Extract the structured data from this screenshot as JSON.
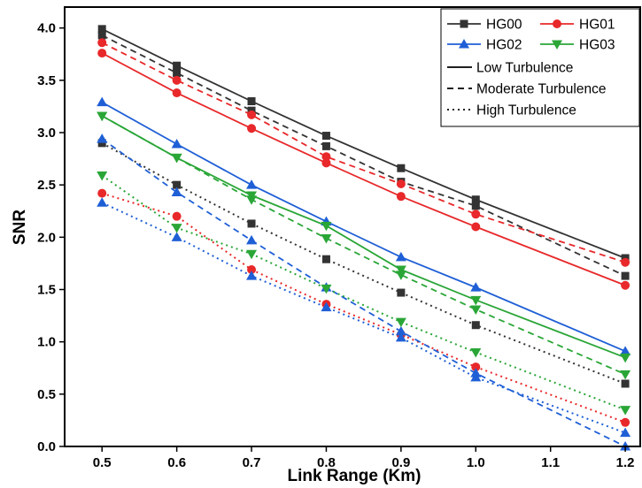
{
  "chart_data": {
    "type": "line",
    "title": "",
    "xlabel": "Link Range (Km)",
    "ylabel": "SNR",
    "xlim": [
      0.45,
      1.22
    ],
    "ylim": [
      0.0,
      4.2
    ],
    "xticks": [
      0.5,
      0.6,
      0.7,
      0.8,
      0.9,
      1.0,
      1.1,
      1.2
    ],
    "xtick_labels": [
      "0.5",
      "0.6",
      "0.7",
      "0.8",
      "0.9",
      "1.0",
      "1.1",
      "1.2"
    ],
    "yticks": [
      0.0,
      0.5,
      1.0,
      1.5,
      2.0,
      2.5,
      3.0,
      3.5,
      4.0
    ],
    "ytick_labels": [
      "0.0",
      "0.5",
      "1.0",
      "1.5",
      "2.0",
      "2.5",
      "3.0",
      "3.5",
      "4.0"
    ],
    "x": [
      0.5,
      0.6,
      0.7,
      0.8,
      0.9,
      1.0,
      1.2
    ],
    "legend_position": "top-right",
    "grid": false,
    "modes": [
      {
        "name": "HG00",
        "color": "#333333",
        "marker": "square"
      },
      {
        "name": "HG01",
        "color": "#e8282a",
        "marker": "circle"
      },
      {
        "name": "HG02",
        "color": "#1f5fd6",
        "marker": "triangle-up"
      },
      {
        "name": "HG03",
        "color": "#2aa637",
        "marker": "triangle-down"
      }
    ],
    "turbulence_styles": [
      {
        "name": "Low Turbulence",
        "dash": "solid"
      },
      {
        "name": "Moderate Turbulence",
        "dash": "dashed"
      },
      {
        "name": "High Turbulence",
        "dash": "dotted"
      }
    ],
    "series": [
      {
        "mode": "HG00",
        "turbulence": "Low Turbulence",
        "values": [
          3.99,
          3.64,
          3.3,
          2.97,
          2.66,
          2.36,
          1.8
        ]
      },
      {
        "mode": "HG00",
        "turbulence": "Moderate Turbulence",
        "values": [
          3.93,
          3.57,
          3.21,
          2.87,
          2.53,
          2.3,
          1.63
        ]
      },
      {
        "mode": "HG00",
        "turbulence": "High Turbulence",
        "values": [
          2.9,
          2.5,
          2.13,
          1.79,
          1.47,
          1.16,
          0.6
        ]
      },
      {
        "mode": "HG01",
        "turbulence": "Low Turbulence",
        "values": [
          3.76,
          3.38,
          3.04,
          2.71,
          2.39,
          2.1,
          1.54
        ]
      },
      {
        "mode": "HG01",
        "turbulence": "Moderate Turbulence",
        "values": [
          3.86,
          3.5,
          3.17,
          2.77,
          2.51,
          2.22,
          1.76
        ]
      },
      {
        "mode": "HG01",
        "turbulence": "High Turbulence",
        "values": [
          2.42,
          2.2,
          1.69,
          1.36,
          1.07,
          0.76,
          0.23
        ]
      },
      {
        "mode": "HG02",
        "turbulence": "Low Turbulence",
        "values": [
          3.29,
          2.89,
          2.5,
          2.15,
          1.81,
          1.52,
          0.91
        ]
      },
      {
        "mode": "HG02",
        "turbulence": "Moderate Turbulence",
        "values": [
          2.94,
          2.43,
          1.97,
          1.52,
          1.1,
          0.7,
          0.0
        ]
      },
      {
        "mode": "HG02",
        "turbulence": "High Turbulence",
        "values": [
          2.33,
          2.0,
          1.63,
          1.33,
          1.04,
          0.66,
          0.13
        ]
      },
      {
        "mode": "HG03",
        "turbulence": "Low Turbulence",
        "values": [
          3.16,
          2.76,
          2.4,
          2.11,
          1.69,
          1.4,
          0.85
        ]
      },
      {
        "mode": "HG03",
        "turbulence": "Moderate Turbulence",
        "values": [
          3.16,
          2.76,
          2.36,
          1.99,
          1.64,
          1.31,
          0.69
        ]
      },
      {
        "mode": "HG03",
        "turbulence": "High Turbulence",
        "values": [
          2.59,
          2.09,
          1.84,
          1.51,
          1.19,
          0.9,
          0.35
        ]
      }
    ]
  }
}
